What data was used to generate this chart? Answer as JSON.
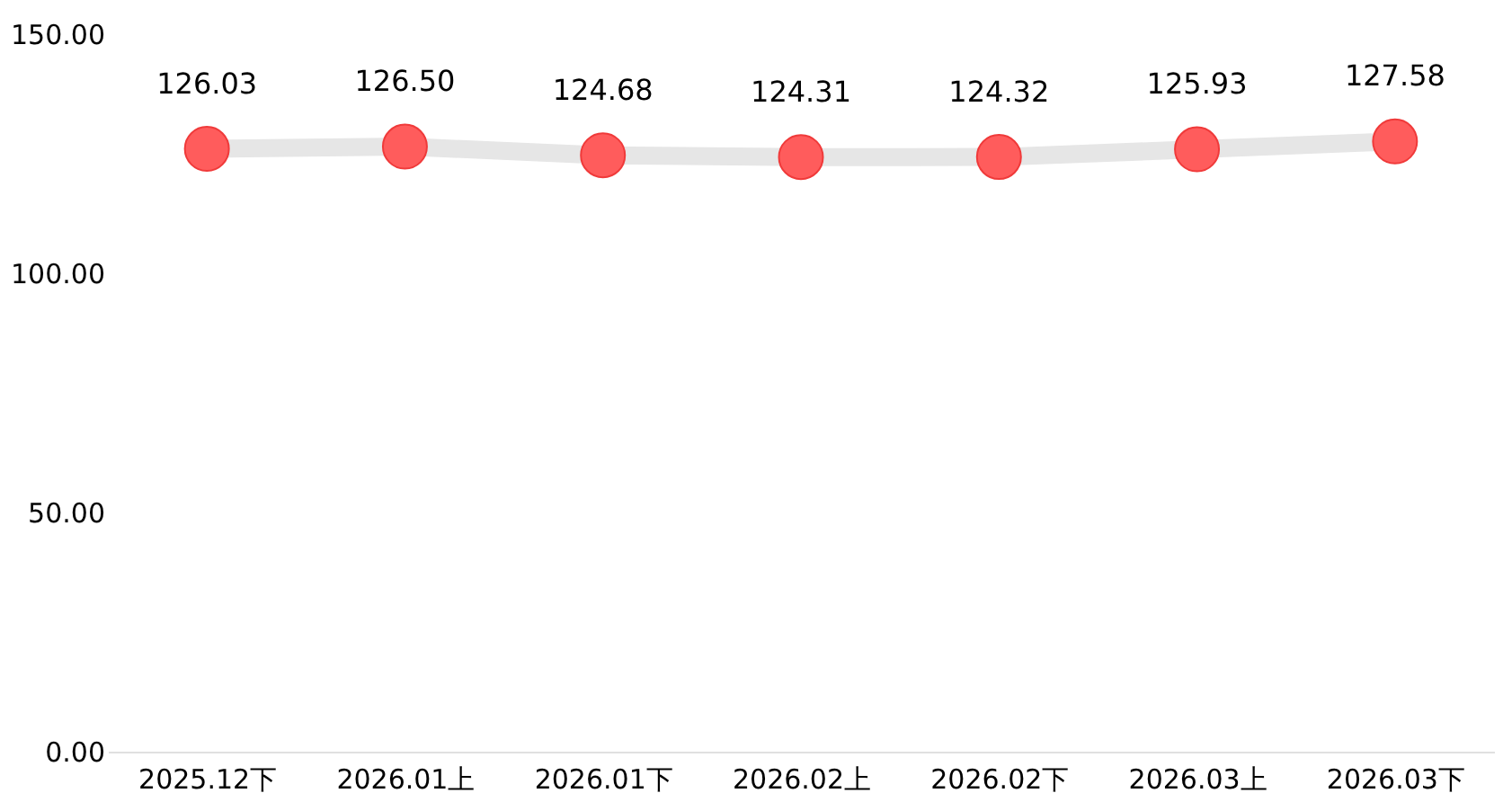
{
  "chart_data": {
    "type": "line",
    "categories": [
      "2025.12下",
      "2026.01上",
      "2026.01下",
      "2026.02上",
      "2026.02下",
      "2026.03上",
      "2026.03下"
    ],
    "series": [
      {
        "color": "#ff5c5c",
        "values": [
          126.03,
          126.5,
          124.68,
          124.31,
          124.32,
          125.93,
          127.58
        ],
        "value_labels": [
          "126.03",
          "126.50",
          "124.68",
          "124.31",
          "124.32",
          "125.93",
          "127.58"
        ]
      }
    ],
    "ylim": [
      0,
      150
    ],
    "yticks": [
      {
        "value": 0,
        "label": "0.00"
      },
      {
        "value": 50,
        "label": "50.00"
      },
      {
        "value": 100,
        "label": "100.00"
      },
      {
        "value": 150,
        "label": "150.00"
      }
    ],
    "marker": "circle",
    "grid": false
  }
}
